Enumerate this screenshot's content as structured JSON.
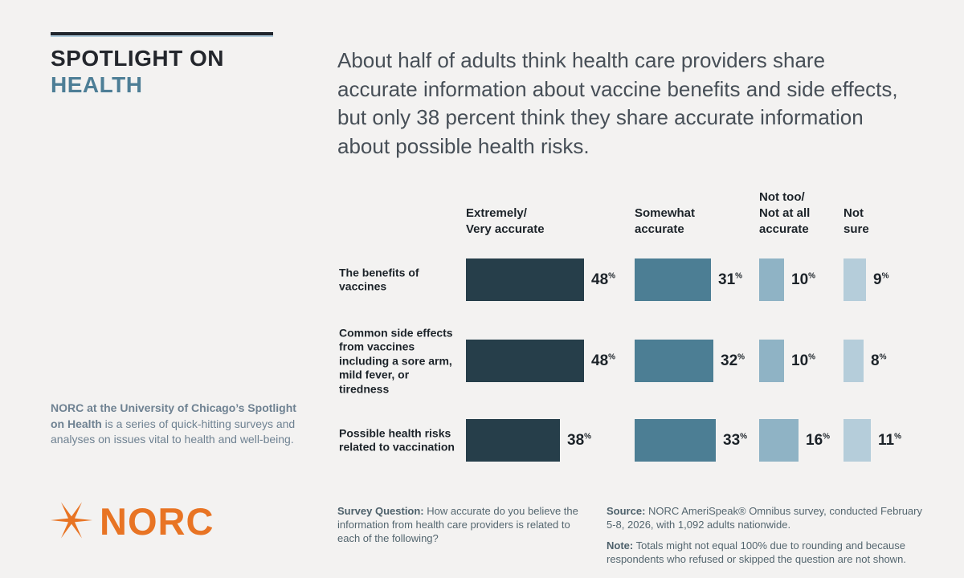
{
  "page": {
    "background": "#F3F2F1"
  },
  "brand": {
    "kicker_line1": "SPOTLIGHT ON",
    "kicker_line2": "HEALTH",
    "logo_text": "NORC",
    "logo_color": "#E87424"
  },
  "headline": "About half of adults think health care providers share accurate information about vaccine benefits and side effects, but only 38 percent think they share accurate information about possible health risks.",
  "sidebar": {
    "about_bold": "NORC at the University of Chicago’s Spotlight on Health",
    "about_rest": " is a series of quick-hitting surveys and analyses on issues vital to health and well-being."
  },
  "footnotes": {
    "survey_label": "Survey Question:",
    "survey_text": " How accurate do you believe the information from health care providers is related to each of the following?",
    "source_label": "Source:",
    "source_text": " NORC AmeriSpeak® Omnibus survey, conducted February 5-8, 2026, with 1,092 adults nationwide.",
    "note_label": "Note:",
    "note_text": " Totals might not equal 100% due to rounding and because respondents who refused or skipped the question are not shown."
  },
  "chart_data": {
    "type": "bar",
    "orientation": "horizontal",
    "unit": "%",
    "xlim": [
      0,
      50
    ],
    "grid": false,
    "legend_position": "column-headers-top",
    "categories": [
      "The benefits of vaccines",
      "Common side effects from vaccines including a sore arm, mild fever, or tiredness",
      "Possible health risks related to vaccination"
    ],
    "column_headers": [
      "Extremely/\nVery accurate",
      "Somewhat\naccurate",
      "Not too/\nNot at all\naccurate",
      "Not\nsure"
    ],
    "series": [
      {
        "name": "Extremely/Very accurate",
        "color": "#263E4A",
        "values": [
          48,
          48,
          38
        ]
      },
      {
        "name": "Somewhat accurate",
        "color": "#4C7E94",
        "values": [
          31,
          32,
          33
        ]
      },
      {
        "name": "Not too/Not at all accurate",
        "color": "#8FB3C5",
        "values": [
          10,
          10,
          16
        ]
      },
      {
        "name": "Not sure",
        "color": "#B5CDDA",
        "values": [
          9,
          8,
          11
        ]
      }
    ]
  }
}
